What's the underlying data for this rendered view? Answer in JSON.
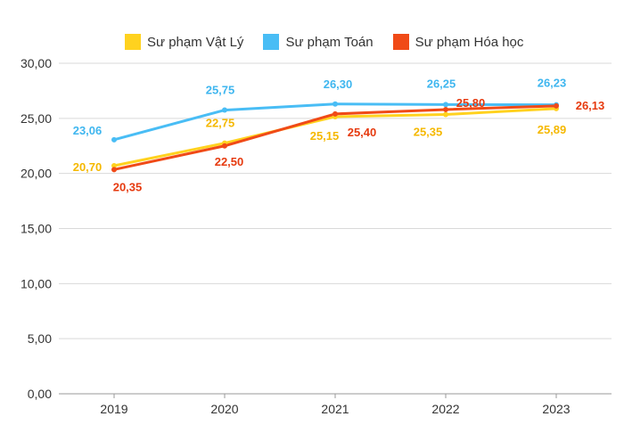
{
  "chart_data": {
    "type": "line",
    "title": "",
    "xlabel": "",
    "ylabel": "",
    "categories": [
      "2019",
      "2020",
      "2021",
      "2022",
      "2023"
    ],
    "ylim": [
      0,
      30
    ],
    "yticks": [
      "0,00",
      "5,00",
      "10,00",
      "15,00",
      "20,00",
      "25,00",
      "30,00"
    ],
    "grid": true,
    "legend": "top",
    "series": [
      {
        "name": "Sư phạm Vật Lý",
        "color": "#FFD21F",
        "label_color": "#F5B800",
        "values": [
          20.7,
          22.75,
          25.15,
          25.35,
          25.89
        ],
        "labels": [
          "20,70",
          "22,75",
          "25,15",
          "25,35",
          "25,89"
        ]
      },
      {
        "name": "Sư phạm Toán",
        "color": "#49BDF5",
        "label_color": "#3FB6EF",
        "values": [
          23.06,
          25.75,
          26.3,
          26.25,
          26.23
        ],
        "labels": [
          "23,06",
          "25,75",
          "26,30",
          "26,25",
          "26,23"
        ]
      },
      {
        "name": "Sư phạm Hóa học",
        "color": "#F04A17",
        "label_color": "#E63A0F",
        "values": [
          20.35,
          22.5,
          25.4,
          25.8,
          26.13
        ],
        "labels": [
          "20,35",
          "22,50",
          "25,40",
          "25,80",
          "26,13"
        ]
      }
    ]
  }
}
